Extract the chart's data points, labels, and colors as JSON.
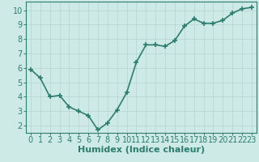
{
  "x": [
    0,
    1,
    2,
    3,
    4,
    5,
    6,
    7,
    8,
    9,
    10,
    11,
    12,
    13,
    14,
    15,
    16,
    17,
    18,
    19,
    20,
    21,
    22,
    23
  ],
  "y": [
    5.9,
    5.3,
    4.0,
    4.1,
    3.3,
    3.0,
    2.7,
    1.7,
    2.2,
    3.1,
    4.3,
    6.4,
    7.6,
    7.6,
    7.5,
    7.9,
    8.9,
    9.4,
    9.1,
    9.1,
    9.3,
    9.8,
    10.1,
    10.2
  ],
  "line_color": "#2d7d6e",
  "marker": "+",
  "marker_size": 4,
  "marker_lw": 1.2,
  "bg_color": "#ceeae7",
  "grid_color": "#b8d8d4",
  "xlabel": "Humidex (Indice chaleur)",
  "xlabel_fontsize": 8,
  "tick_fontsize": 7,
  "xlim": [
    -0.5,
    23.5
  ],
  "ylim": [
    1.5,
    10.6
  ],
  "yticks": [
    2,
    3,
    4,
    5,
    6,
    7,
    8,
    9,
    10
  ],
  "xticks": [
    0,
    1,
    2,
    3,
    4,
    5,
    6,
    7,
    8,
    9,
    10,
    11,
    12,
    13,
    14,
    15,
    16,
    17,
    18,
    19,
    20,
    21,
    22,
    23
  ],
  "linewidth": 1.2,
  "spine_color": "#2d7d6e",
  "tick_color": "#2d7d6e",
  "label_color": "#2d7d6e"
}
